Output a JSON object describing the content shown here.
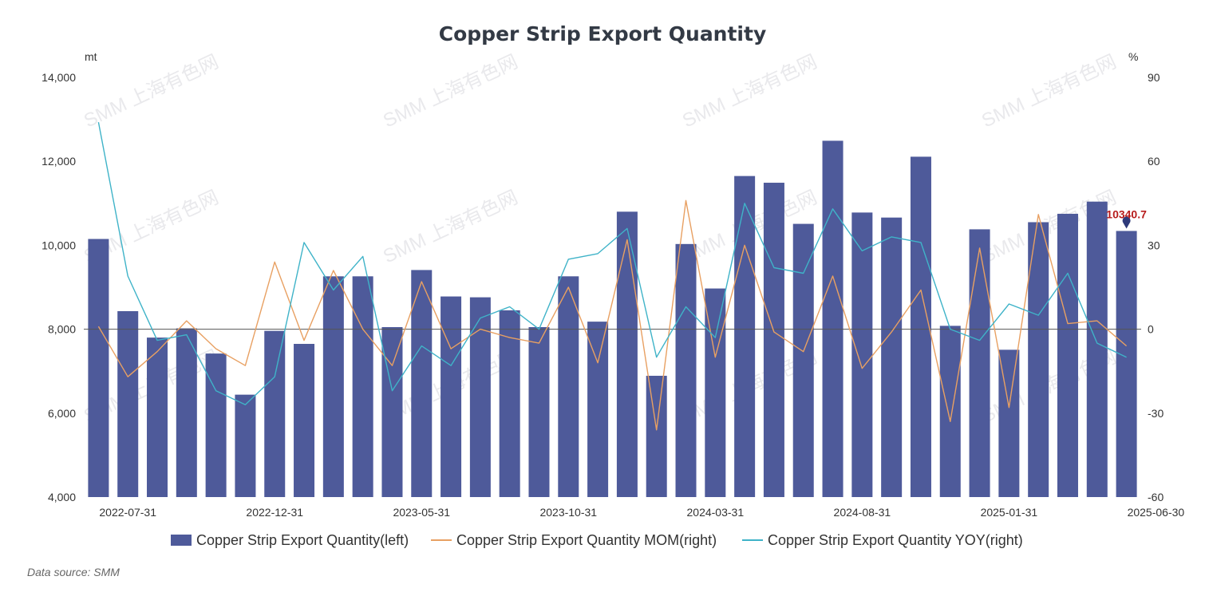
{
  "chart_data": {
    "type": "bar",
    "title": "Copper Strip Export Quantity",
    "left_unit": "mt",
    "right_unit": "%",
    "ylim_left": [
      4000,
      14000
    ],
    "yticks_left": [
      "4,000",
      "6,000",
      "8,000",
      "10,000",
      "12,000",
      "14,000"
    ],
    "ylim_right": [
      -60,
      90
    ],
    "yticks_right": [
      "-60",
      "-30",
      "0",
      "30",
      "60",
      "90"
    ],
    "x_tick_labels": [
      {
        "index": 1,
        "label": "2022-07-31"
      },
      {
        "index": 6,
        "label": "2022-12-31"
      },
      {
        "index": 11,
        "label": "2023-05-31"
      },
      {
        "index": 16,
        "label": "2023-10-31"
      },
      {
        "index": 21,
        "label": "2024-03-31"
      },
      {
        "index": 26,
        "label": "2024-08-31"
      },
      {
        "index": 31,
        "label": "2025-01-31"
      },
      {
        "index": 36,
        "label": "2025-06-30"
      }
    ],
    "series": [
      {
        "name": "Copper Strip Export Quantity(left)",
        "kind": "bar",
        "axis": "left",
        "color": "#4e5a9a",
        "values": [
          10150,
          8430,
          7800,
          8020,
          7420,
          6440,
          7960,
          7650,
          9260,
          9260,
          8050,
          9410,
          8780,
          8760,
          8450,
          8050,
          9260,
          8180,
          10800,
          6890,
          10030,
          8970,
          11650,
          11490,
          10510,
          12490,
          10780,
          10660,
          12110,
          8080,
          10380,
          7510,
          10550,
          10750,
          11040,
          10340.7
        ]
      },
      {
        "name": "Copper Strip Export Quantity MOM(right)",
        "kind": "line",
        "axis": "right",
        "color": "#e8a062",
        "values": [
          1,
          -17,
          -8,
          3,
          -7,
          -13,
          24,
          -4,
          21,
          0,
          -13,
          17,
          -7,
          0,
          -3,
          -5,
          15,
          -12,
          32,
          -36,
          46,
          -10,
          30,
          -1,
          -8,
          19,
          -14,
          -1,
          14,
          -33,
          29,
          -28,
          41,
          2,
          3,
          -6
        ]
      },
      {
        "name": "Copper Strip Export Quantity YOY(right)",
        "kind": "line",
        "axis": "right",
        "color": "#3fb3c8",
        "values": [
          74,
          19,
          -4,
          -2,
          -22,
          -27,
          -17,
          31,
          14,
          26,
          -22,
          -6,
          -13,
          4,
          8,
          0,
          25,
          27,
          36,
          -10,
          8,
          -3,
          45,
          22,
          20,
          43,
          28,
          33,
          31,
          0,
          -4,
          9,
          5,
          20,
          -5,
          -10
        ]
      }
    ],
    "last_value_label": "10340.7",
    "legend_position": "bottom",
    "grid": false,
    "watermark": "SMM 上海有色网",
    "source": "Data source:  SMM"
  }
}
